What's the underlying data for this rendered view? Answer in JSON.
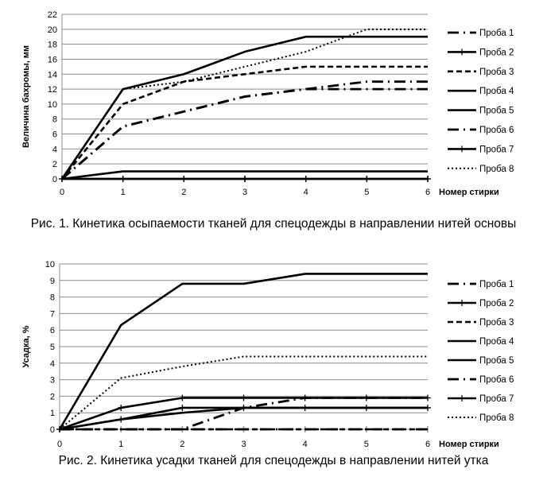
{
  "chart_data": [
    {
      "type": "line",
      "ylabel": "Величина бахромы, мм",
      "xlabel": "Номер стирки",
      "x": [
        0,
        1,
        2,
        3,
        4,
        5,
        6
      ],
      "xlim": [
        0,
        6
      ],
      "ylim": [
        0,
        22
      ],
      "yticks": [
        0,
        2,
        4,
        6,
        8,
        10,
        12,
        14,
        16,
        18,
        20,
        22
      ],
      "grid": true,
      "legend": "right",
      "series": [
        {
          "name": "Проба 1",
          "style": "dash-dot",
          "values": [
            0,
            7,
            9,
            11,
            12,
            12,
            12
          ]
        },
        {
          "name": "Проба 2",
          "style": "solid-plus",
          "values": [
            0,
            0,
            0,
            0,
            0,
            0,
            0
          ]
        },
        {
          "name": "Проба 3",
          "style": "dashed",
          "values": [
            0,
            10,
            13,
            14,
            15,
            15,
            15
          ]
        },
        {
          "name": "Проба 4",
          "style": "solid",
          "values": [
            0,
            12,
            14,
            17,
            19,
            19,
            19
          ]
        },
        {
          "name": "Проба 5",
          "style": "solid",
          "values": [
            0,
            1,
            1,
            1,
            1,
            1,
            1
          ]
        },
        {
          "name": "Проба 6",
          "style": "dash-dot",
          "values": [
            0,
            7,
            9,
            11,
            12,
            13,
            13
          ]
        },
        {
          "name": "Проба 7",
          "style": "solid-plus",
          "values": [
            0,
            0,
            0,
            0,
            0,
            0,
            0
          ]
        },
        {
          "name": "Проба 8",
          "style": "dotted",
          "values": [
            0,
            12,
            13,
            15,
            17,
            20,
            20
          ]
        }
      ],
      "caption": "Рис. 1. Кинетика осыпаемости тканей для спецодежды в направлении нитей основы"
    },
    {
      "type": "line",
      "ylabel": "Усадка, %",
      "xlabel": "Номер стирки",
      "x": [
        0,
        1,
        2,
        3,
        4,
        5,
        6
      ],
      "xlim": [
        0,
        6
      ],
      "ylim": [
        0,
        10
      ],
      "yticks": [
        0,
        1,
        2,
        3,
        4,
        5,
        6,
        7,
        8,
        9,
        10
      ],
      "grid": true,
      "legend": "right",
      "series": [
        {
          "name": "Проба 1",
          "style": "dash-dot",
          "values": [
            0,
            0,
            0,
            0,
            0,
            0,
            0
          ]
        },
        {
          "name": "Проба 2",
          "style": "solid-plus",
          "values": [
            0,
            0.6,
            1.3,
            1.3,
            1.3,
            1.3,
            1.3
          ]
        },
        {
          "name": "Проба 3",
          "style": "dashed",
          "values": [
            0,
            0,
            0,
            0,
            0,
            0,
            0
          ]
        },
        {
          "name": "Проба 4",
          "style": "solid",
          "values": [
            0,
            6.3,
            8.8,
            8.8,
            9.4,
            9.4,
            9.4
          ]
        },
        {
          "name": "Проба 5",
          "style": "solid",
          "values": [
            0,
            0.6,
            1.0,
            1.3,
            1.3,
            1.3,
            1.3
          ]
        },
        {
          "name": "Проба 6",
          "style": "dash-dot",
          "values": [
            0,
            0,
            0,
            1.3,
            1.9,
            1.9,
            1.9
          ]
        },
        {
          "name": "Проба 7",
          "style": "solid-plus",
          "values": [
            0,
            1.3,
            1.9,
            1.9,
            1.9,
            1.9,
            1.9
          ]
        },
        {
          "name": "Проба 8",
          "style": "dotted",
          "values": [
            0,
            3.1,
            3.8,
            4.4,
            4.4,
            4.4,
            4.4
          ]
        }
      ],
      "caption": "Рис. 2. Кинетика усадки тканей для спецодежды в направлении нитей утка"
    }
  ]
}
